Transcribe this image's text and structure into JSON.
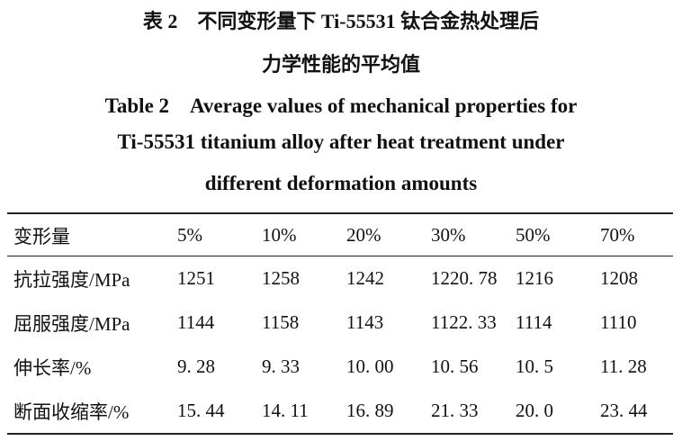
{
  "caption": {
    "zh_line1": "表 2　不同变形量下 Ti-55531 钛合金热处理后",
    "zh_line2": "力学性能的平均值",
    "en_line1": "Table 2　Average values of mechanical properties for",
    "en_line2": "Ti-55531 titanium alloy after heat treatment under",
    "en_line3": "different deformation amounts"
  },
  "table": {
    "headers": [
      "变形量",
      "5%",
      "10%",
      "20%",
      "30%",
      "50%",
      "70%"
    ],
    "rows": [
      [
        "抗拉强度/MPa",
        "1251",
        "1258",
        "1242",
        "1220. 78",
        "1216",
        "1208"
      ],
      [
        "屈服强度/MPa",
        "1144",
        "1158",
        "1143",
        "1122. 33",
        "1114",
        "1110"
      ],
      [
        "伸长率/%",
        "9. 28",
        "9. 33",
        "10. 00",
        "10. 56",
        "10. 5",
        "11. 28"
      ],
      [
        "断面收缩率/%",
        "15. 44",
        "14. 11",
        "16. 89",
        "21. 33",
        "20. 0",
        "23. 44"
      ]
    ]
  }
}
